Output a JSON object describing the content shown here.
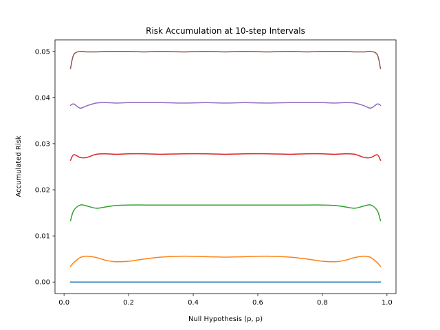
{
  "chart_data": {
    "type": "line",
    "title": "Risk Accumulation at 10-step Intervals",
    "xlabel": "Null Hypothesis (p, p)",
    "ylabel": "Accumulated Risk",
    "xlim": [
      -0.028,
      1.028
    ],
    "ylim": [
      -0.0025,
      0.0525
    ],
    "xticks": [
      "0.0",
      "0.2",
      "0.4",
      "0.6",
      "0.8",
      "1.0"
    ],
    "xtick_values": [
      0.0,
      0.2,
      0.4,
      0.6,
      0.8,
      1.0
    ],
    "yticks": [
      "0.00",
      "0.01",
      "0.02",
      "0.03",
      "0.04",
      "0.05"
    ],
    "ytick_values": [
      0.0,
      0.01,
      0.02,
      0.03,
      0.04,
      0.05
    ],
    "grid": false,
    "x": [
      0.02,
      0.03,
      0.05,
      0.07,
      0.1,
      0.13,
      0.16,
      0.2,
      0.25,
      0.3,
      0.37,
      0.44,
      0.5,
      0.56,
      0.63,
      0.7,
      0.75,
      0.8,
      0.84,
      0.87,
      0.9,
      0.93,
      0.95,
      0.97,
      0.98
    ],
    "series": [
      {
        "color": "#1f77b4",
        "values": [
          0.0,
          0.0,
          0.0,
          0.0,
          0.0,
          0.0,
          0.0,
          0.0,
          0.0,
          0.0,
          0.0,
          0.0,
          0.0,
          0.0,
          0.0,
          0.0,
          0.0,
          0.0,
          0.0,
          0.0,
          0.0,
          0.0,
          0.0,
          0.0,
          0.0
        ]
      },
      {
        "color": "#ff7f0e",
        "values": [
          0.0034,
          0.0042,
          0.0053,
          0.0056,
          0.0053,
          0.0047,
          0.0044,
          0.0045,
          0.005,
          0.0054,
          0.0056,
          0.0055,
          0.0054,
          0.0055,
          0.0056,
          0.0054,
          0.005,
          0.0045,
          0.0044,
          0.0047,
          0.0053,
          0.0056,
          0.0053,
          0.0042,
          0.0034
        ]
      },
      {
        "color": "#2ca02c",
        "values": [
          0.0133,
          0.0155,
          0.0167,
          0.0165,
          0.016,
          0.0163,
          0.0166,
          0.0167,
          0.0167,
          0.0167,
          0.0167,
          0.0167,
          0.0167,
          0.0167,
          0.0167,
          0.0167,
          0.0167,
          0.0167,
          0.0166,
          0.0163,
          0.016,
          0.0165,
          0.0167,
          0.0155,
          0.0133
        ]
      },
      {
        "color": "#d62728",
        "values": [
          0.0264,
          0.0276,
          0.027,
          0.027,
          0.0277,
          0.0278,
          0.0277,
          0.0278,
          0.0278,
          0.0277,
          0.0278,
          0.0278,
          0.0277,
          0.0278,
          0.0278,
          0.0277,
          0.0278,
          0.0278,
          0.0277,
          0.0278,
          0.0277,
          0.027,
          0.027,
          0.0276,
          0.0264
        ]
      },
      {
        "color": "#9467bd",
        "values": [
          0.0383,
          0.0386,
          0.0377,
          0.0382,
          0.0388,
          0.0389,
          0.0388,
          0.0389,
          0.0389,
          0.0389,
          0.0388,
          0.0389,
          0.0388,
          0.0389,
          0.0388,
          0.0389,
          0.0389,
          0.0389,
          0.0388,
          0.0389,
          0.0388,
          0.0382,
          0.0377,
          0.0386,
          0.0383
        ]
      },
      {
        "color": "#8c564b",
        "values": [
          0.0463,
          0.0493,
          0.05,
          0.0499,
          0.0499,
          0.05,
          0.05,
          0.05,
          0.0499,
          0.05,
          0.0499,
          0.05,
          0.0499,
          0.05,
          0.0499,
          0.05,
          0.0499,
          0.05,
          0.05,
          0.05,
          0.0499,
          0.0499,
          0.05,
          0.0493,
          0.0463
        ]
      }
    ]
  }
}
